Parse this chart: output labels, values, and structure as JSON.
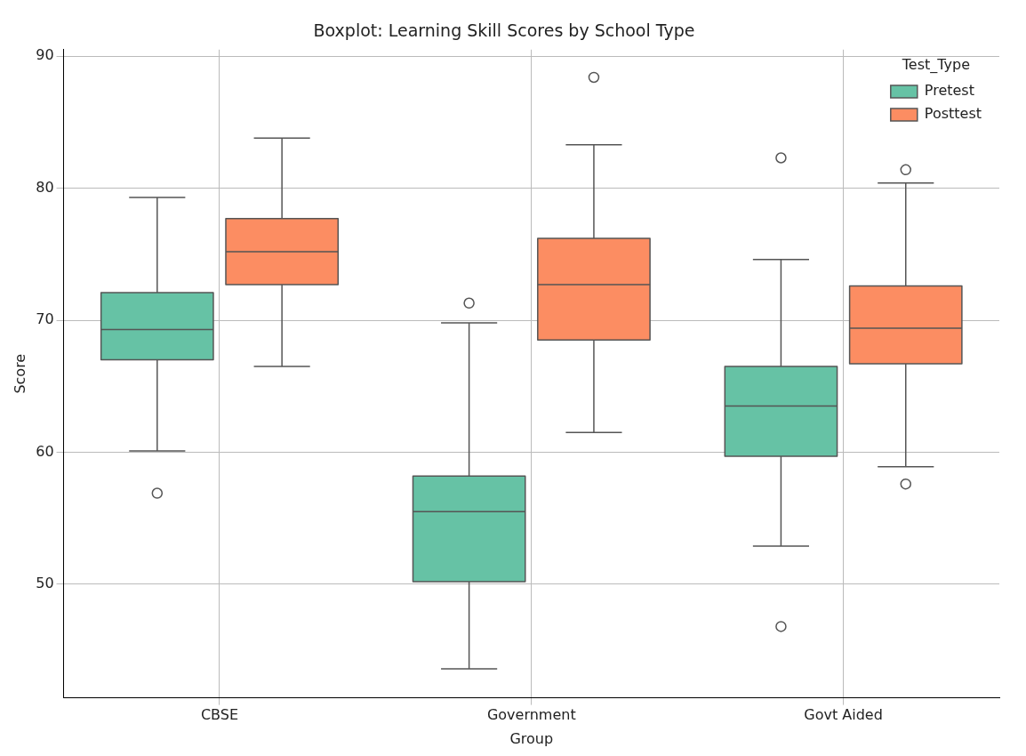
{
  "chart_data": {
    "type": "box",
    "title": "Boxplot: Learning Skill Scores by School Type",
    "xlabel": "Group",
    "ylabel": "Score",
    "categories": [
      "CBSE",
      "Government",
      "Govt Aided"
    ],
    "series": [
      {
        "name": "Pretest",
        "color": "#66c2a5",
        "boxes": [
          {
            "low": 60.1,
            "q1": 67.0,
            "median": 69.3,
            "q3": 72.1,
            "high": 79.3,
            "outliers": [
              56.9
            ]
          },
          {
            "low": 43.6,
            "q1": 50.2,
            "median": 55.5,
            "q3": 58.2,
            "high": 69.8,
            "outliers": [
              71.3
            ]
          },
          {
            "low": 52.9,
            "q1": 59.7,
            "median": 63.5,
            "q3": 66.5,
            "high": 74.6,
            "outliers": [
              82.3,
              46.8
            ]
          }
        ]
      },
      {
        "name": "Posttest",
        "color": "#fc8d62",
        "boxes": [
          {
            "low": 66.5,
            "q1": 72.7,
            "median": 75.2,
            "q3": 77.7,
            "high": 83.8
          },
          {
            "low": 61.5,
            "q1": 68.5,
            "median": 72.7,
            "q3": 76.2,
            "high": 83.3,
            "outliers": [
              88.4
            ]
          },
          {
            "low": 58.9,
            "q1": 66.7,
            "median": 69.4,
            "q3": 72.6,
            "high": 80.4,
            "outliers": [
              81.4,
              57.6
            ]
          }
        ]
      }
    ],
    "ylim": [
      41.4,
      90.5
    ],
    "yticks": [
      50,
      60,
      70,
      80,
      90
    ],
    "grid": true,
    "legend": "top right",
    "legend_title": "Test_Type"
  }
}
